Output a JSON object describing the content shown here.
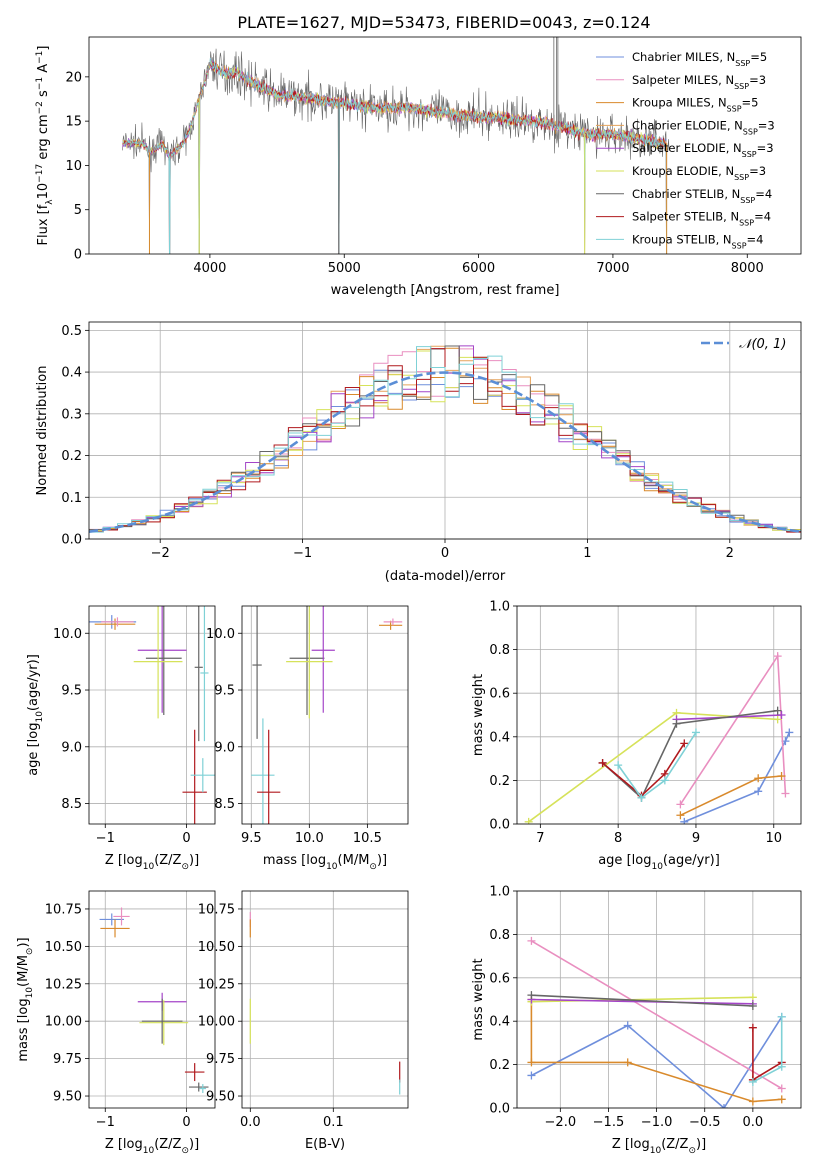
{
  "figure_title": "PLATE=1627, MJD=53473, FIBERID=0043, z=0.124",
  "palette": [
    "#6f8fdc",
    "#e98fc0",
    "#d98a2c",
    "#e5a25a",
    "#a445c8",
    "#d6e25a",
    "#666666",
    "#b0191e",
    "#7fd1d6"
  ],
  "chart_data": [
    {
      "id": "spectrum",
      "type": "line",
      "xlabel": "wavelength [Angstrom, rest frame]",
      "ylabel_parts": {
        "pre": "Flux [f",
        "sub1": "λ",
        "mid": "10",
        "sup1": "−17",
        "post1": " erg cm",
        "sup2": "−2",
        "post2": " s",
        "sup3": "−1",
        "post3": " A",
        "sup4": "−1",
        "end": "]"
      },
      "xlim": [
        3100,
        8400
      ],
      "ylim": [
        0,
        24.5
      ],
      "xticks": [
        4000,
        5000,
        6000,
        7000,
        8000
      ],
      "yticks": [
        0,
        5,
        10,
        15,
        20
      ],
      "grid": false,
      "legend_position": "upper-right",
      "continuum": {
        "x": [
          3350,
          3500,
          3550,
          3650,
          3700,
          3800,
          3850,
          3950,
          4000,
          4100,
          4200,
          4300,
          4500,
          4800,
          5000,
          5200,
          5500,
          5800,
          6000,
          6300,
          6500,
          6800,
          7000,
          7200,
          7400
        ],
        "y": [
          12.5,
          12.5,
          11.5,
          12.5,
          11.0,
          12.5,
          14.0,
          19.0,
          21.5,
          20.5,
          20.5,
          19.5,
          18.0,
          17.5,
          17.0,
          16.5,
          16.5,
          15.8,
          15.5,
          15.2,
          14.8,
          13.5,
          13.5,
          13.0,
          12.5
        ]
      },
      "dips": [
        [
          3550,
          0
        ],
        [
          3700,
          0
        ],
        [
          3920,
          0
        ],
        [
          4960,
          0
        ],
        [
          6790,
          0
        ],
        [
          7400,
          0
        ]
      ],
      "spikes": [
        [
          6560,
          24.5
        ],
        [
          6580,
          24.5
        ],
        [
          6590,
          24.5
        ]
      ],
      "series": [
        {
          "name_parts": {
            "pre": "Chabrier MILES, N",
            "sub": "SSP",
            "post": "=5"
          },
          "color": "#6f8fdc"
        },
        {
          "name_parts": {
            "pre": "Salpeter MILES, N",
            "sub": "SSP",
            "post": "=3"
          },
          "color": "#e98fc0"
        },
        {
          "name_parts": {
            "pre": "Kroupa MILES, N",
            "sub": "SSP",
            "post": "=5"
          },
          "color": "#d98a2c"
        },
        {
          "name_parts": {
            "pre": "Chabrier ELODIE, N",
            "sub": "SSP",
            "post": "=3"
          },
          "color": "#e5a25a"
        },
        {
          "name_parts": {
            "pre": "Salpeter ELODIE, N",
            "sub": "SSP",
            "post": "=3"
          },
          "color": "#a445c8"
        },
        {
          "name_parts": {
            "pre": "Kroupa ELODIE, N",
            "sub": "SSP",
            "post": "=3"
          },
          "color": "#d6e25a"
        },
        {
          "name_parts": {
            "pre": "Chabrier STELIB, N",
            "sub": "SSP",
            "post": "=4"
          },
          "color": "#666666"
        },
        {
          "name_parts": {
            "pre": "Salpeter STELIB, N",
            "sub": "SSP",
            "post": "=4"
          },
          "color": "#b0191e"
        },
        {
          "name_parts": {
            "pre": "Kroupa STELIB, N",
            "sub": "SSP",
            "post": "=4"
          },
          "color": "#7fd1d6"
        }
      ]
    },
    {
      "id": "residuals",
      "type": "line",
      "xlabel": "(data-model)/error",
      "ylabel": "Normed distribution",
      "xlim": [
        -2.5,
        2.5
      ],
      "ylim": [
        0,
        0.52
      ],
      "xticks": [
        -2,
        -1,
        0,
        1,
        2
      ],
      "yticks": [
        0.0,
        0.1,
        0.2,
        0.3,
        0.4,
        0.5
      ],
      "xticklabels": [
        "−2",
        "−1",
        "0",
        "1",
        "2"
      ],
      "yticklabels": [
        "0.0",
        "0.1",
        "0.2",
        "0.3",
        "0.4",
        "0.5"
      ],
      "grid": true,
      "legend_position": "upper-right",
      "legend_label": "𝒩(0, 1)",
      "gaussian_color": "#5b8ed6",
      "histogram_bin_width": 0.1
    },
    {
      "id": "age-vs-Z",
      "type": "scatter",
      "xlabel_parts": {
        "pre": "Z [log",
        "sub": "10",
        "post": "(Z/Z",
        "sub2": "⊙",
        "end": ")]"
      },
      "ylabel_parts": {
        "pre": "age  [log",
        "sub": "10",
        "post": "(age/yr)]"
      },
      "xlim": [
        -1.2,
        0.35
      ],
      "ylim": [
        8.32,
        10.24
      ],
      "xticks": [
        -1,
        0
      ],
      "xticklabels": [
        "−1",
        "0"
      ],
      "yticks": [
        8.5,
        9.0,
        9.5,
        10.0
      ],
      "yticklabels": [
        "8.5",
        "9.0",
        "9.5",
        "10.0"
      ],
      "grid": true,
      "points": [
        {
          "x": -0.92,
          "y": 10.1,
          "xerr": 0.3,
          "yerr": 0.12,
          "c": 0
        },
        {
          "x": -0.88,
          "y": 10.08,
          "xerr": 0.25,
          "yerr": 0.1,
          "c": 2
        },
        {
          "x": -0.85,
          "y": 10.1,
          "xerr": 0.2,
          "yerr": 0.08,
          "c": 1
        },
        {
          "x": -0.3,
          "y": 9.85,
          "xerr": 0.3,
          "yerr": 1.1,
          "c": 4
        },
        {
          "x": -0.28,
          "y": 9.78,
          "xerr": 0.22,
          "yerr": 1.0,
          "c": 6
        },
        {
          "x": -0.35,
          "y": 9.75,
          "xerr": 0.3,
          "yerr": 1.0,
          "c": 5
        },
        {
          "x": 0.1,
          "y": 8.6,
          "xerr": 0.15,
          "yerr": 1.1,
          "c": 7
        },
        {
          "x": 0.15,
          "y": 9.7,
          "xerr": 0.05,
          "yerr": 1.3,
          "c": 6
        },
        {
          "x": 0.2,
          "y": 8.75,
          "xerr": 0.15,
          "yerr": 0.3,
          "c": 8
        },
        {
          "x": 0.22,
          "y": 9.65,
          "xerr": 0.05,
          "yerr": 1.2,
          "c": 8
        }
      ]
    },
    {
      "id": "age-vs-mass",
      "type": "scatter",
      "xlabel_parts": {
        "pre": "mass [log",
        "sub": "10",
        "post": "(M/M",
        "sub2": "⊙",
        "end": ")]"
      },
      "xlim": [
        9.42,
        10.85
      ],
      "ylim": [
        8.32,
        10.24
      ],
      "xticks": [
        9.5,
        10.0,
        10.5
      ],
      "xticklabels": [
        "9.5",
        "10.0",
        "10.5"
      ],
      "yticks": [
        8.5,
        9.0,
        9.5,
        10.0
      ],
      "yticklabels": [
        "8.5",
        "9.0",
        "9.5",
        "10.0"
      ],
      "grid": true,
      "points": [
        {
          "x": 10.7,
          "y": 10.07,
          "xerr": 0.1,
          "yerr": 0.08,
          "c": 2
        },
        {
          "x": 10.72,
          "y": 10.1,
          "xerr": 0.08,
          "yerr": 0.06,
          "c": 1
        },
        {
          "x": 9.98,
          "y": 9.78,
          "xerr": 0.15,
          "yerr": 1.0,
          "c": 6
        },
        {
          "x": 10.12,
          "y": 9.85,
          "xerr": 0.1,
          "yerr": 1.1,
          "c": 4
        },
        {
          "x": 10.0,
          "y": 9.75,
          "xerr": 0.2,
          "yerr": 1.0,
          "c": 5
        },
        {
          "x": 9.6,
          "y": 8.75,
          "xerr": 0.1,
          "yerr": 1.0,
          "c": 8
        },
        {
          "x": 9.65,
          "y": 8.6,
          "xerr": 0.1,
          "yerr": 1.1,
          "c": 7
        },
        {
          "x": 9.55,
          "y": 9.72,
          "xerr": 0.04,
          "yerr": 1.3,
          "c": 6
        }
      ]
    },
    {
      "id": "weight-vs-age",
      "type": "line",
      "xlabel_parts": {
        "pre": "age  [log",
        "sub": "10",
        "post": "(age/yr)]"
      },
      "ylabel": "mass weight",
      "xlim": [
        6.7,
        10.35
      ],
      "ylim": [
        0,
        1.0
      ],
      "xticks": [
        7,
        8,
        9,
        10
      ],
      "yticks": [
        0.0,
        0.2,
        0.4,
        0.6,
        0.8,
        1.0
      ],
      "xticklabels": [
        "7",
        "8",
        "9",
        "10"
      ],
      "yticklabels": [
        "0.0",
        "0.2",
        "0.4",
        "0.6",
        "0.8",
        "1.0"
      ],
      "grid": true,
      "series": [
        {
          "c": 0,
          "x": [
            8.85,
            9.8,
            10.15,
            10.2
          ],
          "y": [
            0.01,
            0.15,
            0.38,
            0.42
          ]
        },
        {
          "c": 1,
          "x": [
            8.8,
            10.05,
            10.15
          ],
          "y": [
            0.09,
            0.77,
            0.14
          ]
        },
        {
          "c": 2,
          "x": [
            8.8,
            9.8,
            10.1
          ],
          "y": [
            0.04,
            0.21,
            0.22
          ]
        },
        {
          "c": 5,
          "x": [
            6.85,
            8.75,
            10.05
          ],
          "y": [
            0.01,
            0.51,
            0.48
          ]
        },
        {
          "c": 4,
          "x": [
            8.75,
            10.1
          ],
          "y": [
            0.48,
            0.5
          ]
        },
        {
          "c": 6,
          "x": [
            7.8,
            8.3,
            8.75,
            10.05
          ],
          "y": [
            0.28,
            0.12,
            0.46,
            0.52
          ]
        },
        {
          "c": 7,
          "x": [
            7.8,
            8.3,
            8.6,
            8.85
          ],
          "y": [
            0.28,
            0.13,
            0.23,
            0.37
          ]
        },
        {
          "c": 8,
          "x": [
            8.0,
            8.3,
            8.6,
            9.0
          ],
          "y": [
            0.27,
            0.12,
            0.2,
            0.42
          ]
        }
      ]
    },
    {
      "id": "mass-vs-Z",
      "type": "scatter",
      "xlabel_parts": {
        "pre": "Z [log",
        "sub": "10",
        "post": "(Z/Z",
        "sub2": "⊙",
        "end": ")]"
      },
      "ylabel_parts": {
        "pre": "mass [log",
        "sub": "10",
        "post": "(M/M",
        "sub2": "⊙",
        "end": ")]"
      },
      "xlim": [
        -1.2,
        0.35
      ],
      "ylim": [
        9.42,
        10.87
      ],
      "xticks": [
        -1,
        0
      ],
      "xticklabels": [
        "−1",
        "0"
      ],
      "yticks": [
        9.5,
        9.75,
        10.0,
        10.25,
        10.5,
        10.75
      ],
      "yticklabels": [
        "9.50",
        "9.75",
        "10.00",
        "10.25",
        "10.50",
        "10.75"
      ],
      "grid": true,
      "points": [
        {
          "x": -0.92,
          "y": 10.68,
          "xerr": 0.15,
          "yerr": 0.08,
          "c": 0
        },
        {
          "x": -0.88,
          "y": 10.62,
          "xerr": 0.18,
          "yerr": 0.12,
          "c": 2
        },
        {
          "x": -0.8,
          "y": 10.7,
          "xerr": 0.1,
          "yerr": 0.12,
          "c": 1
        },
        {
          "x": -0.3,
          "y": 10.13,
          "xerr": 0.3,
          "yerr": 0.12,
          "c": 4
        },
        {
          "x": -0.28,
          "y": 9.99,
          "xerr": 0.3,
          "yerr": 0.3,
          "c": 5
        },
        {
          "x": -0.3,
          "y": 10.0,
          "xerr": 0.25,
          "yerr": 0.3,
          "c": 6
        },
        {
          "x": 0.1,
          "y": 9.66,
          "xerr": 0.12,
          "yerr": 0.12,
          "c": 7
        },
        {
          "x": 0.15,
          "y": 9.56,
          "xerr": 0.12,
          "yerr": 0.06,
          "c": 6
        },
        {
          "x": 0.2,
          "y": 9.55,
          "xerr": 0.04,
          "yerr": 0.06,
          "c": 8
        }
      ]
    },
    {
      "id": "mass-vs-EBV",
      "type": "scatter",
      "xlabel": "E(B-V)",
      "xlim": [
        -0.01,
        0.19
      ],
      "ylim": [
        9.42,
        10.87
      ],
      "xticks": [
        0.0,
        0.1
      ],
      "xticklabels": [
        "0.0",
        "0.1"
      ],
      "yticks": [
        9.5,
        9.75,
        10.0,
        10.25,
        10.5,
        10.75
      ],
      "yticklabels": [
        "9.50",
        "9.75",
        "10.00",
        "10.25",
        "10.50",
        "10.75"
      ],
      "grid": true,
      "points": [
        {
          "x": 0.0,
          "y": 10.68,
          "xerr": 0.0,
          "yerr": 0.1,
          "c": 1
        },
        {
          "x": 0.0,
          "y": 10.62,
          "xerr": 0.0,
          "yerr": 0.12,
          "c": 2
        },
        {
          "x": 0.0,
          "y": 10.0,
          "xerr": 0.0,
          "yerr": 0.3,
          "c": 5
        },
        {
          "x": 0.18,
          "y": 9.66,
          "xerr": 0.0,
          "yerr": 0.14,
          "c": 7
        },
        {
          "x": 0.18,
          "y": 9.56,
          "xerr": 0.0,
          "yerr": 0.1,
          "c": 8
        }
      ]
    },
    {
      "id": "weight-vs-Z",
      "type": "line",
      "xlabel_parts": {
        "pre": "Z [log",
        "sub": "10",
        "post": "(Z/Z",
        "sub2": "⊙",
        "end": ")]"
      },
      "ylabel": "mass weight",
      "xlim": [
        -2.45,
        0.5
      ],
      "ylim": [
        0,
        1.0
      ],
      "xticks": [
        -2.0,
        -1.5,
        -1.0,
        -0.5,
        0.0
      ],
      "yticks": [
        0.0,
        0.2,
        0.4,
        0.6,
        0.8,
        1.0
      ],
      "xticklabels": [
        "−2.0",
        "−1.5",
        "−1.0",
        "−0.5",
        "0.0"
      ],
      "yticklabels": [
        "0.0",
        "0.2",
        "0.4",
        "0.6",
        "0.8",
        "1.0"
      ],
      "grid": true,
      "series": [
        {
          "c": 0,
          "x": [
            -2.3,
            -1.3,
            -0.3,
            0.3
          ],
          "y": [
            0.15,
            0.38,
            0.0,
            0.42
          ]
        },
        {
          "c": 1,
          "x": [
            -2.3,
            0.3
          ],
          "y": [
            0.77,
            0.09
          ]
        },
        {
          "c": 2,
          "x": [
            -2.3,
            -2.3,
            -1.3,
            0.0,
            0.3
          ],
          "y": [
            0.5,
            0.21,
            0.21,
            0.03,
            0.04
          ]
        },
        {
          "c": 5,
          "x": [
            -2.3,
            0.0
          ],
          "y": [
            0.49,
            0.51
          ]
        },
        {
          "c": 4,
          "x": [
            -2.3,
            0.0
          ],
          "y": [
            0.5,
            0.48
          ]
        },
        {
          "c": 6,
          "x": [
            -2.3,
            0.0
          ],
          "y": [
            0.52,
            0.47
          ]
        },
        {
          "c": 7,
          "x": [
            0.0,
            0.0,
            0.3
          ],
          "y": [
            0.37,
            0.13,
            0.21
          ]
        },
        {
          "c": 8,
          "x": [
            0.0,
            0.3,
            0.3
          ],
          "y": [
            0.12,
            0.19,
            0.42
          ]
        }
      ]
    }
  ]
}
